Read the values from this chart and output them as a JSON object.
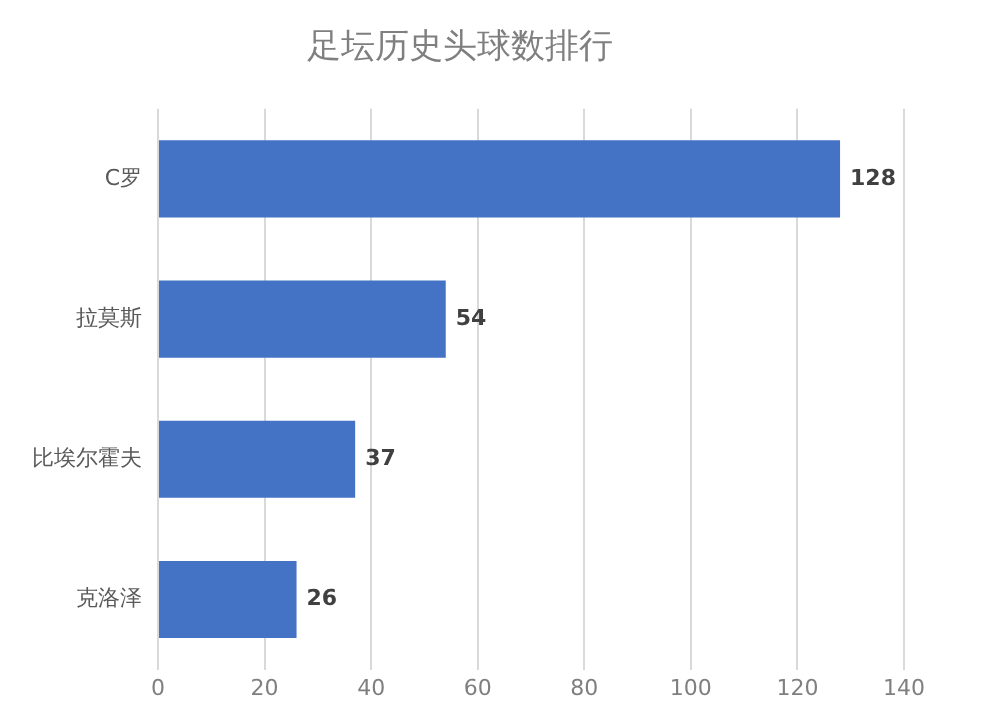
{
  "chart_data": {
    "type": "bar",
    "orientation": "horizontal",
    "title": "足坛历史头球数排行",
    "categories": [
      "C罗",
      "拉莫斯",
      "比埃尔霍夫",
      "克洛泽"
    ],
    "values": [
      128,
      54,
      37,
      26
    ],
    "color": "#4472c4",
    "xlim": [
      0,
      140
    ],
    "xticks": [
      0,
      20,
      40,
      60,
      80,
      100,
      120,
      140
    ],
    "grid": "x",
    "data_labels": true
  }
}
